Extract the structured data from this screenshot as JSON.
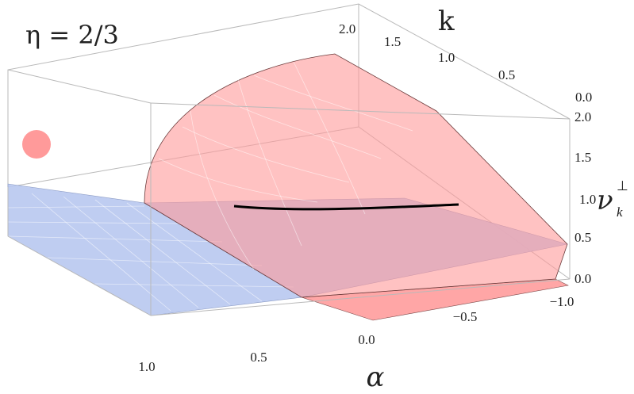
{
  "chart_data": {
    "type": "surface3d",
    "title": "",
    "annotation": "η = 2/3",
    "axes": {
      "x": {
        "label": "α",
        "range": [
          -1.0,
          1.0
        ],
        "ticks": [
          "1.0",
          "0.5",
          "0.0",
          "−0.5",
          "−1.0"
        ]
      },
      "y": {
        "label": "k",
        "range": [
          0.0,
          2.0
        ],
        "ticks": [
          "0.0",
          "0.5",
          "1.0",
          "1.5",
          "2.0"
        ]
      },
      "z": {
        "label_base": "ν",
        "label_sub": "k",
        "label_sup": "⊥",
        "range": [
          0.0,
          2.0
        ],
        "ticks": [
          "0.0",
          "0.5",
          "1.0",
          "1.5",
          "2.0"
        ]
      }
    },
    "surfaces": [
      {
        "name": "",
        "color": "#ff9a9a",
        "shape": "curved surface rising with k for α < 0"
      },
      {
        "name": "",
        "color": "#b8c8ef",
        "shape": "horizontal plane at ν = 1",
        "z": 1.0
      }
    ],
    "intersection_curve": {
      "color": "#000000",
      "z": 1.0
    },
    "marker": {
      "color": "#ff9a9a",
      "shape": "circle"
    }
  }
}
